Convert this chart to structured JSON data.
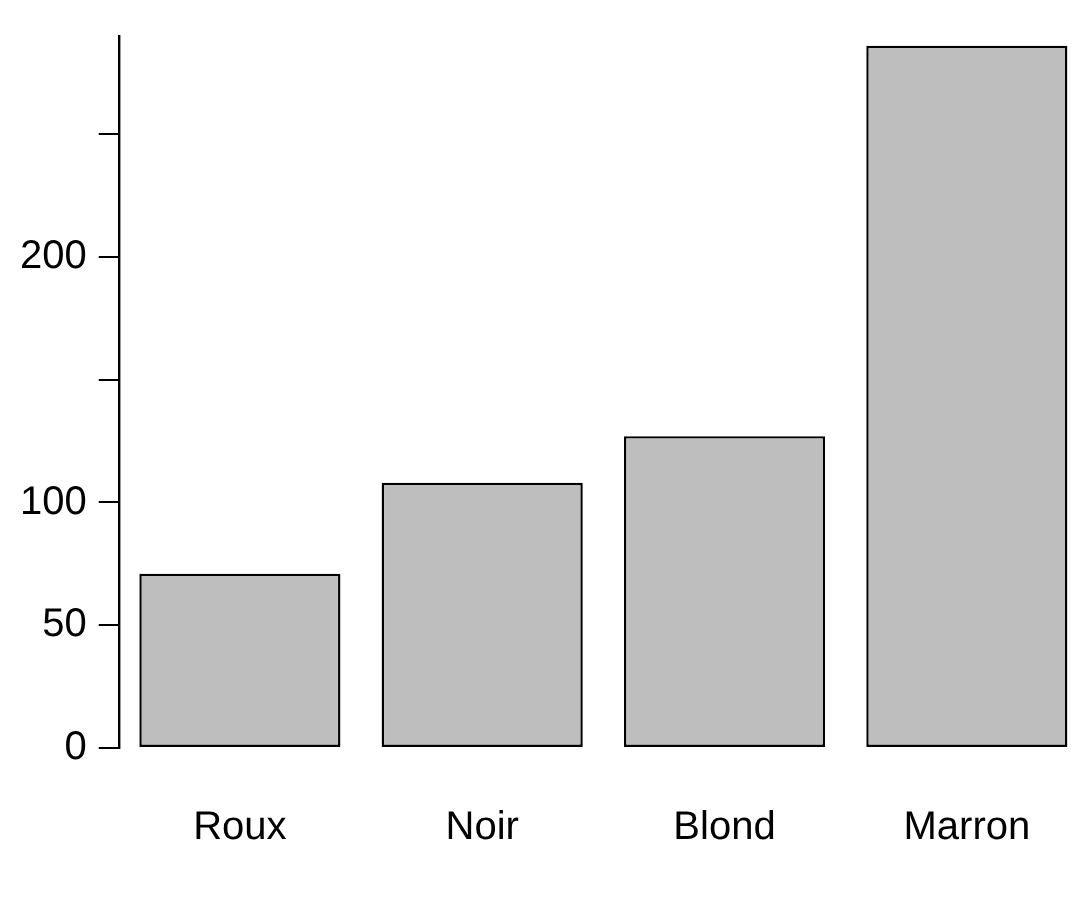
{
  "chart_data": {
    "type": "bar",
    "categories": [
      "Roux",
      "Noir",
      "Blond",
      "Marron"
    ],
    "values": [
      71,
      108,
      127,
      286
    ],
    "color": "#bebebe",
    "ylim": [
      0,
      290
    ],
    "yticks": [
      0,
      50,
      100,
      {
        "value": 150,
        "label": null
      },
      200,
      {
        "value": 250,
        "label": null
      }
    ],
    "grid": false,
    "legend": false
  }
}
